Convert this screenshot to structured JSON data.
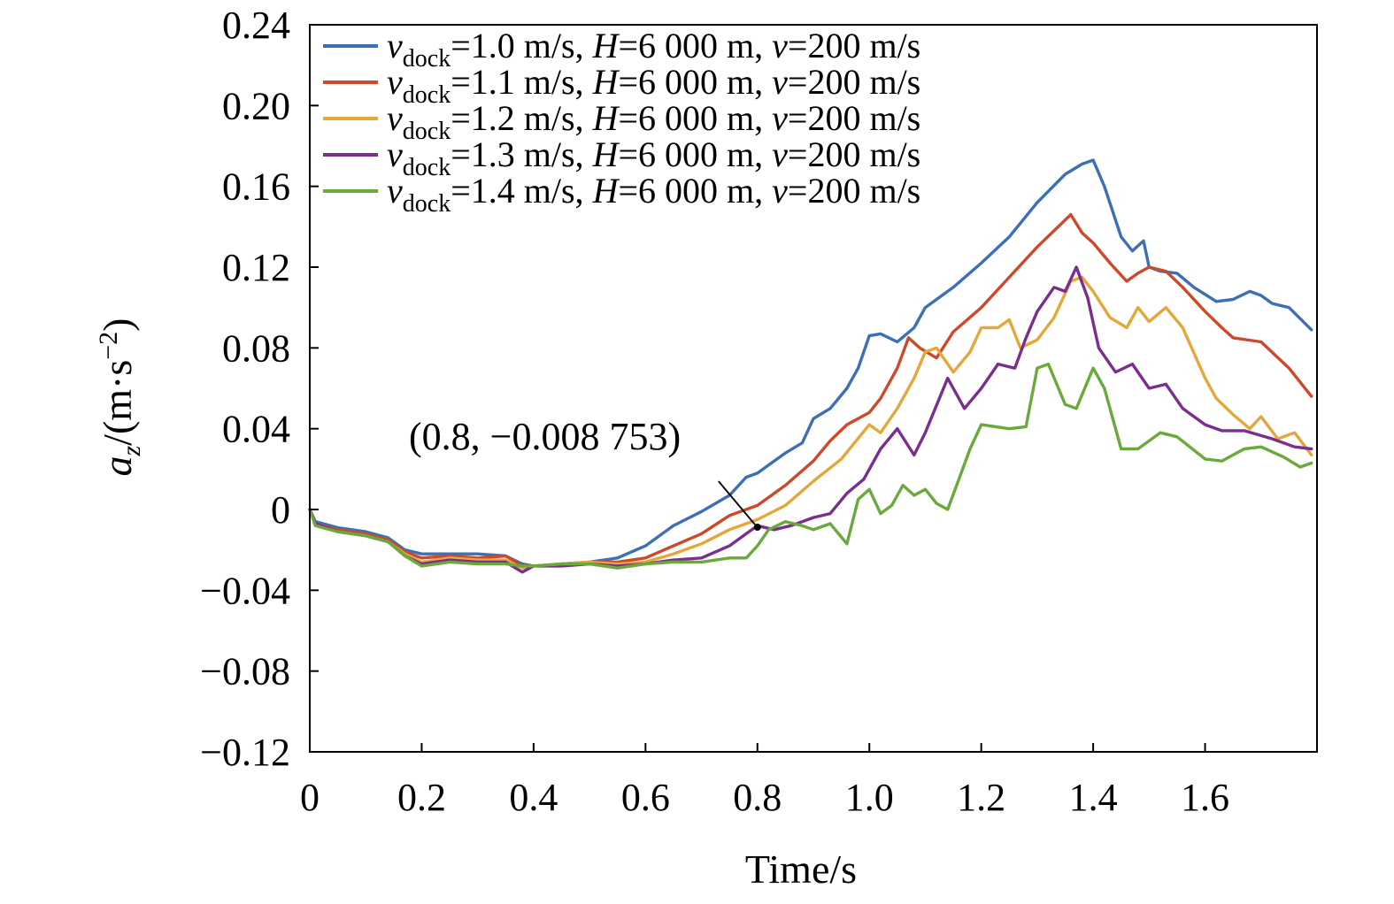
{
  "chart_data": {
    "type": "line",
    "xlabel": "Time/s",
    "ylabel": {
      "var": "a",
      "sub": "z",
      "unit_open": "/(m·s",
      "unit_exp": "−2",
      "unit_close": ")"
    },
    "xlim": [
      0,
      1.8
    ],
    "ylim": [
      -0.12,
      0.24
    ],
    "xticks": [
      0,
      0.2,
      0.4,
      0.6,
      0.8,
      1.0,
      1.2,
      1.4,
      1.6
    ],
    "xtick_labels": [
      "0",
      "0.2",
      "0.4",
      "0.6",
      "0.8",
      "1.0",
      "1.2",
      "1.4",
      "1.6"
    ],
    "yticks": [
      -0.12,
      -0.08,
      -0.04,
      0,
      0.04,
      0.08,
      0.12,
      0.16,
      0.2,
      0.24
    ],
    "ytick_labels": [
      "−0.12",
      "−0.08",
      "−0.04",
      "0",
      "0.04",
      "0.08",
      "0.12",
      "0.16",
      "0.20",
      "0.24"
    ],
    "grid": false,
    "legend_position": "top",
    "annotation": {
      "text": "(0.8, −0.008 753)",
      "x": 0.8,
      "y": -0.008753
    },
    "series": [
      {
        "legend": {
          "v": "v",
          "sub": "dock",
          "rest1": "=1.0 m/s, ",
          "h": "H",
          "rest2": "=6 000 m, ",
          "v2": "v",
          "rest3": "=200 m/s"
        },
        "color": "#3c6fb6",
        "x": [
          0,
          0.01,
          0.05,
          0.1,
          0.14,
          0.17,
          0.2,
          0.25,
          0.3,
          0.35,
          0.38,
          0.4,
          0.45,
          0.5,
          0.55,
          0.6,
          0.65,
          0.7,
          0.75,
          0.78,
          0.8,
          0.82,
          0.85,
          0.88,
          0.9,
          0.93,
          0.96,
          0.98,
          1.0,
          1.02,
          1.05,
          1.08,
          1.1,
          1.15,
          1.2,
          1.25,
          1.3,
          1.35,
          1.38,
          1.4,
          1.42,
          1.45,
          1.47,
          1.49,
          1.5,
          1.52,
          1.55,
          1.58,
          1.62,
          1.65,
          1.68,
          1.7,
          1.72,
          1.75,
          1.79
        ],
        "y": [
          0,
          -0.006,
          -0.009,
          -0.011,
          -0.014,
          -0.02,
          -0.022,
          -0.022,
          -0.022,
          -0.023,
          -0.027,
          -0.028,
          -0.027,
          -0.026,
          -0.024,
          -0.018,
          -0.008,
          -0.001,
          0.007,
          0.016,
          0.018,
          0.022,
          0.028,
          0.033,
          0.045,
          0.05,
          0.06,
          0.07,
          0.086,
          0.087,
          0.083,
          0.09,
          0.1,
          0.11,
          0.122,
          0.135,
          0.152,
          0.166,
          0.171,
          0.173,
          0.16,
          0.135,
          0.128,
          0.133,
          0.12,
          0.118,
          0.117,
          0.11,
          0.103,
          0.104,
          0.108,
          0.106,
          0.102,
          0.1,
          0.089
        ]
      },
      {
        "legend": {
          "v": "v",
          "sub": "dock",
          "rest1": "=1.1 m/s, ",
          "h": "H",
          "rest2": "=6 000 m, ",
          "v2": "v",
          "rest3": "=200 m/s"
        },
        "color": "#cc4a2a",
        "x": [
          0,
          0.01,
          0.05,
          0.1,
          0.14,
          0.17,
          0.2,
          0.25,
          0.3,
          0.35,
          0.38,
          0.4,
          0.45,
          0.5,
          0.55,
          0.6,
          0.65,
          0.7,
          0.75,
          0.8,
          0.85,
          0.9,
          0.93,
          0.96,
          1.0,
          1.02,
          1.05,
          1.07,
          1.09,
          1.12,
          1.15,
          1.2,
          1.25,
          1.3,
          1.33,
          1.36,
          1.38,
          1.4,
          1.43,
          1.46,
          1.48,
          1.5,
          1.53,
          1.56,
          1.6,
          1.63,
          1.65,
          1.7,
          1.75,
          1.79
        ],
        "y": [
          0,
          -0.007,
          -0.01,
          -0.012,
          -0.015,
          -0.021,
          -0.024,
          -0.023,
          -0.024,
          -0.023,
          -0.028,
          -0.028,
          -0.027,
          -0.026,
          -0.026,
          -0.024,
          -0.018,
          -0.012,
          -0.003,
          0.002,
          0.012,
          0.024,
          0.034,
          0.042,
          0.048,
          0.055,
          0.07,
          0.085,
          0.08,
          0.075,
          0.088,
          0.1,
          0.115,
          0.13,
          0.138,
          0.146,
          0.137,
          0.132,
          0.122,
          0.113,
          0.117,
          0.12,
          0.118,
          0.11,
          0.098,
          0.09,
          0.085,
          0.083,
          0.07,
          0.056
        ]
      },
      {
        "legend": {
          "v": "v",
          "sub": "dock",
          "rest1": "=1.2 m/s, ",
          "h": "H",
          "rest2": "=6 000 m, ",
          "v2": "v",
          "rest3": "=200 m/s"
        },
        "color": "#e3a73a",
        "x": [
          0,
          0.01,
          0.05,
          0.1,
          0.14,
          0.17,
          0.2,
          0.25,
          0.3,
          0.35,
          0.38,
          0.4,
          0.45,
          0.5,
          0.55,
          0.6,
          0.65,
          0.7,
          0.75,
          0.8,
          0.85,
          0.9,
          0.95,
          1.0,
          1.02,
          1.05,
          1.08,
          1.1,
          1.12,
          1.15,
          1.18,
          1.2,
          1.23,
          1.25,
          1.27,
          1.3,
          1.33,
          1.36,
          1.38,
          1.4,
          1.43,
          1.46,
          1.48,
          1.5,
          1.53,
          1.56,
          1.6,
          1.62,
          1.65,
          1.68,
          1.7,
          1.73,
          1.76,
          1.79
        ],
        "y": [
          0,
          -0.007,
          -0.011,
          -0.013,
          -0.016,
          -0.022,
          -0.026,
          -0.024,
          -0.025,
          -0.025,
          -0.029,
          -0.028,
          -0.027,
          -0.026,
          -0.027,
          -0.026,
          -0.022,
          -0.017,
          -0.01,
          -0.005,
          0.002,
          0.014,
          0.025,
          0.042,
          0.038,
          0.05,
          0.065,
          0.078,
          0.08,
          0.068,
          0.078,
          0.09,
          0.09,
          0.094,
          0.08,
          0.084,
          0.095,
          0.113,
          0.115,
          0.108,
          0.095,
          0.09,
          0.1,
          0.093,
          0.1,
          0.09,
          0.065,
          0.055,
          0.047,
          0.04,
          0.046,
          0.035,
          0.038,
          0.027
        ]
      },
      {
        "legend": {
          "v": "v",
          "sub": "dock",
          "rest1": "=1.3 m/s, ",
          "h": "H",
          "rest2": "=6 000 m, ",
          "v2": "v",
          "rest3": "=200 m/s"
        },
        "color": "#7a2f8e",
        "x": [
          0,
          0.01,
          0.05,
          0.1,
          0.14,
          0.17,
          0.2,
          0.25,
          0.3,
          0.35,
          0.38,
          0.4,
          0.45,
          0.5,
          0.55,
          0.6,
          0.65,
          0.7,
          0.75,
          0.78,
          0.8,
          0.83,
          0.86,
          0.9,
          0.93,
          0.96,
          0.99,
          1.02,
          1.05,
          1.08,
          1.1,
          1.14,
          1.17,
          1.2,
          1.23,
          1.26,
          1.28,
          1.3,
          1.33,
          1.35,
          1.37,
          1.39,
          1.41,
          1.44,
          1.47,
          1.5,
          1.53,
          1.56,
          1.6,
          1.63,
          1.67,
          1.72,
          1.76,
          1.79
        ],
        "y": [
          0,
          -0.007,
          -0.011,
          -0.013,
          -0.016,
          -0.023,
          -0.027,
          -0.025,
          -0.026,
          -0.026,
          -0.031,
          -0.028,
          -0.028,
          -0.027,
          -0.028,
          -0.027,
          -0.025,
          -0.024,
          -0.018,
          -0.012,
          -0.008,
          -0.01,
          -0.008,
          -0.004,
          -0.002,
          0.008,
          0.015,
          0.03,
          0.04,
          0.027,
          0.038,
          0.065,
          0.05,
          0.06,
          0.072,
          0.07,
          0.085,
          0.098,
          0.11,
          0.108,
          0.12,
          0.105,
          0.08,
          0.068,
          0.072,
          0.06,
          0.062,
          0.05,
          0.042,
          0.039,
          0.039,
          0.035,
          0.031,
          0.03
        ]
      },
      {
        "legend": {
          "v": "v",
          "sub": "dock",
          "rest1": "=1.4 m/s, ",
          "h": "H",
          "rest2": "=6 000 m, ",
          "v2": "v",
          "rest3": "=200 m/s"
        },
        "color": "#6aaa3c",
        "x": [
          0,
          0.01,
          0.05,
          0.1,
          0.14,
          0.17,
          0.2,
          0.25,
          0.3,
          0.35,
          0.38,
          0.4,
          0.45,
          0.5,
          0.55,
          0.6,
          0.65,
          0.7,
          0.75,
          0.78,
          0.8,
          0.82,
          0.85,
          0.88,
          0.9,
          0.93,
          0.96,
          0.98,
          1.0,
          1.02,
          1.04,
          1.06,
          1.08,
          1.1,
          1.12,
          1.14,
          1.16,
          1.18,
          1.2,
          1.25,
          1.28,
          1.3,
          1.32,
          1.35,
          1.37,
          1.4,
          1.42,
          1.45,
          1.48,
          1.52,
          1.55,
          1.6,
          1.63,
          1.67,
          1.7,
          1.74,
          1.77,
          1.79
        ],
        "y": [
          0,
          -0.008,
          -0.011,
          -0.013,
          -0.016,
          -0.023,
          -0.028,
          -0.026,
          -0.027,
          -0.027,
          -0.028,
          -0.028,
          -0.027,
          -0.027,
          -0.029,
          -0.027,
          -0.026,
          -0.026,
          -0.024,
          -0.024,
          -0.018,
          -0.01,
          -0.006,
          -0.008,
          -0.01,
          -0.007,
          -0.017,
          0.005,
          0.01,
          -0.002,
          0.002,
          0.012,
          0.007,
          0.01,
          0.003,
          0.0,
          0.015,
          0.03,
          0.042,
          0.04,
          0.041,
          0.07,
          0.072,
          0.052,
          0.05,
          0.07,
          0.06,
          0.03,
          0.03,
          0.038,
          0.036,
          0.025,
          0.024,
          0.03,
          0.031,
          0.026,
          0.021,
          0.023
        ]
      }
    ]
  }
}
